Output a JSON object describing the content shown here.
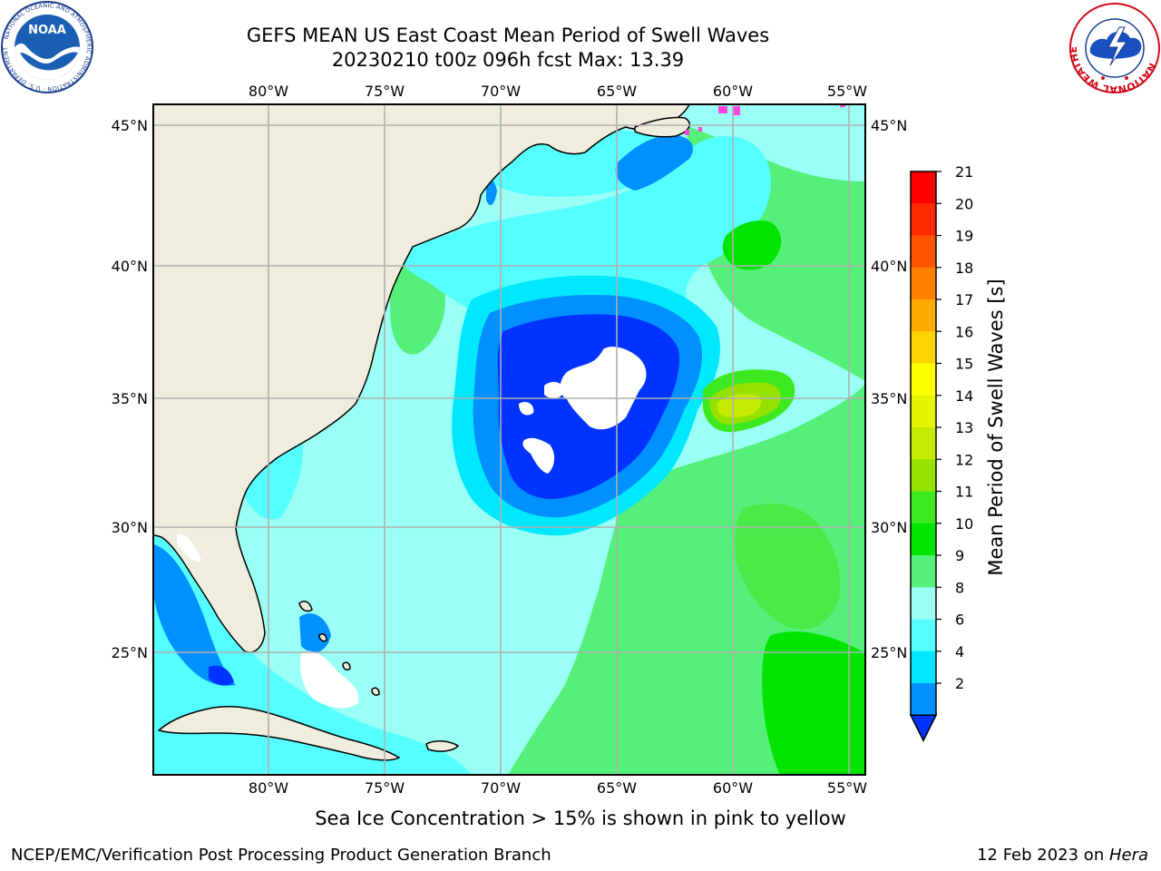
{
  "header": {
    "title_line1": "GEFS MEAN US East Coast Mean Period of Swell Waves",
    "title_line2": "20230210 t00z 096h fcst   Max: 13.39"
  },
  "map": {
    "lon_labels": [
      "80°W",
      "75°W",
      "70°W",
      "65°W",
      "60°W",
      "55°W"
    ],
    "lat_labels": [
      "45°N",
      "40°N",
      "35°N",
      "30°N",
      "25°N"
    ],
    "region": "US East Coast / Western North Atlantic"
  },
  "colorbar": {
    "label": "Mean Period of Swell Waves [s]",
    "ticks": [
      "21",
      "20",
      "19",
      "18",
      "17",
      "16",
      "15",
      "14",
      "13",
      "12",
      "11",
      "10",
      "9",
      "8",
      "6",
      "4",
      "2"
    ],
    "colors": [
      "#ff0000",
      "#ff2a00",
      "#ff5500",
      "#ff7f00",
      "#ffaa00",
      "#ffd400",
      "#ffff00",
      "#e5f400",
      "#c5ea00",
      "#95e100",
      "#3ee81f",
      "#00e400",
      "#55f07a",
      "#9afff5",
      "#55ffff",
      "#00e8ff",
      "#0090ff",
      "#0033ff"
    ]
  },
  "footer": {
    "sea_ice_note": "Sea Ice Concentration > 15% is shown in pink to yellow",
    "credit": "NCEP/EMC/Verification Post Processing Product Generation Branch",
    "date": "12 Feb 2023 on ",
    "machine": "Hera"
  },
  "logos": {
    "left": "NOAA",
    "left_ring_text": "NATIONAL OCEANIC AND ATMOSPHERIC ADMINISTRATION · U.S. DEPARTMENT OF COMMERCE",
    "right_ring_text": "NATIONAL WEATHER SERVICE"
  }
}
